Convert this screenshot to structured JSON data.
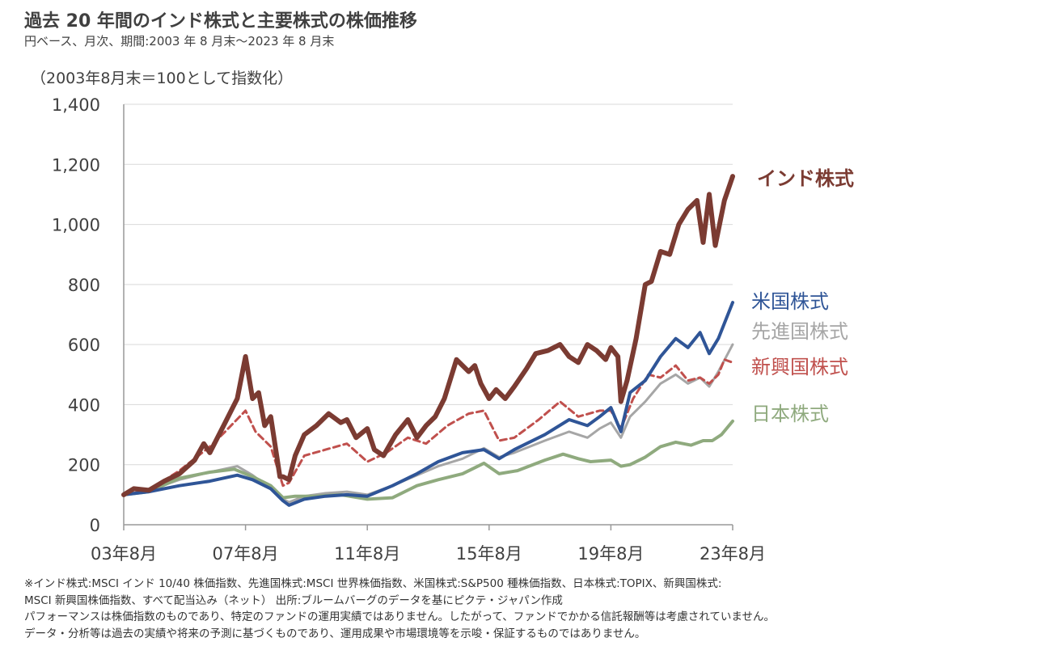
{
  "header": {
    "title": "過去 20 年間のインド株式と主要株式の株価推移",
    "subtitle": "円ベース、月次、期間:2003 年 8 月末～2023 年 8 月末",
    "unit_note": "（2003年8月末＝100として指数化）"
  },
  "chart_data": {
    "type": "line",
    "title": "過去 20 年間のインド株式と主要株式の株価推移",
    "ylabel": "（2003年8月末＝100として指数化）",
    "ylim": [
      0,
      1400
    ],
    "xlim": [
      2003.67,
      2023.67
    ],
    "grid": true,
    "y_ticks": [
      0,
      200,
      400,
      600,
      800,
      1000,
      1200,
      1400
    ],
    "y_tick_labels": [
      "0",
      "200",
      "400",
      "600",
      "800",
      "1,000",
      "1,200",
      "1,400"
    ],
    "x_ticks": [
      2003.67,
      2007.67,
      2011.67,
      2015.67,
      2019.67,
      2023.67
    ],
    "x_tick_labels": [
      "03年8月",
      "07年8月",
      "11年8月",
      "15年8月",
      "19年8月",
      "23年8月"
    ],
    "legend_placement": "right (labels at line ends)",
    "series": [
      {
        "name": "インド株式",
        "color": "#7B3B32",
        "style": "solid",
        "width": 6,
        "x": [
          2003.67,
          2004.0,
          2004.5,
          2005.0,
          2005.5,
          2006.0,
          2006.3,
          2006.5,
          2006.8,
          2007.0,
          2007.4,
          2007.67,
          2007.9,
          2008.1,
          2008.3,
          2008.5,
          2008.8,
          2008.9,
          2009.1,
          2009.3,
          2009.6,
          2010.0,
          2010.4,
          2010.8,
          2011.0,
          2011.3,
          2011.67,
          2011.9,
          2012.2,
          2012.6,
          2013.0,
          2013.3,
          2013.6,
          2013.9,
          2014.2,
          2014.6,
          2015.0,
          2015.2,
          2015.4,
          2015.67,
          2015.9,
          2016.2,
          2016.5,
          2016.9,
          2017.2,
          2017.6,
          2018.0,
          2018.3,
          2018.6,
          2018.9,
          2019.2,
          2019.5,
          2019.67,
          2019.9,
          2020.0,
          2020.2,
          2020.5,
          2020.8,
          2021.0,
          2021.3,
          2021.6,
          2021.9,
          2022.2,
          2022.5,
          2022.7,
          2022.9,
          2023.1,
          2023.4,
          2023.67
        ],
        "y": [
          100,
          120,
          115,
          145,
          170,
          215,
          270,
          240,
          300,
          340,
          420,
          560,
          420,
          440,
          330,
          360,
          160,
          160,
          150,
          230,
          300,
          330,
          370,
          340,
          350,
          290,
          320,
          250,
          230,
          300,
          350,
          290,
          330,
          360,
          420,
          550,
          510,
          530,
          470,
          420,
          450,
          420,
          460,
          520,
          570,
          580,
          600,
          560,
          540,
          600,
          580,
          550,
          590,
          560,
          410,
          480,
          620,
          800,
          810,
          910,
          900,
          1000,
          1050,
          1080,
          940,
          1100,
          930,
          1080,
          1160
        ]
      },
      {
        "name": "米国株式",
        "color": "#2F5597",
        "style": "solid",
        "width": 4,
        "x": [
          2003.67,
          2004.5,
          2005.5,
          2006.5,
          2007.4,
          2007.9,
          2008.5,
          2008.9,
          2009.1,
          2009.6,
          2010.3,
          2011.0,
          2011.67,
          2012.5,
          2013.3,
          2014.0,
          2014.8,
          2015.5,
          2016.0,
          2016.5,
          2017.5,
          2018.3,
          2018.9,
          2019.3,
          2019.67,
          2020.0,
          2020.3,
          2020.8,
          2021.3,
          2021.8,
          2022.2,
          2022.6,
          2022.9,
          2023.2,
          2023.67
        ],
        "y": [
          100,
          110,
          130,
          145,
          165,
          150,
          120,
          80,
          65,
          85,
          95,
          100,
          95,
          130,
          170,
          210,
          240,
          250,
          220,
          250,
          300,
          350,
          330,
          360,
          390,
          310,
          440,
          480,
          560,
          620,
          590,
          640,
          570,
          620,
          740
        ]
      },
      {
        "name": "先進国株式",
        "color": "#A6A6A6",
        "style": "solid",
        "width": 3,
        "x": [
          2003.67,
          2004.5,
          2005.5,
          2006.5,
          2007.4,
          2007.9,
          2008.5,
          2008.9,
          2009.1,
          2009.6,
          2010.3,
          2011.0,
          2011.67,
          2012.5,
          2013.3,
          2014.0,
          2014.8,
          2015.5,
          2016.0,
          2016.5,
          2017.5,
          2018.3,
          2018.9,
          2019.3,
          2019.67,
          2020.0,
          2020.3,
          2020.8,
          2021.3,
          2021.8,
          2022.2,
          2022.6,
          2022.9,
          2023.2,
          2023.67
        ],
        "y": [
          100,
          115,
          150,
          175,
          195,
          165,
          120,
          85,
          75,
          95,
          105,
          110,
          100,
          130,
          165,
          195,
          220,
          255,
          225,
          240,
          280,
          310,
          290,
          320,
          340,
          290,
          360,
          410,
          470,
          500,
          470,
          490,
          460,
          510,
          600
        ]
      },
      {
        "name": "新興国株式",
        "color": "#C0504D",
        "style": "dashed",
        "width": 3,
        "x": [
          2003.67,
          2004.5,
          2005.5,
          2006.5,
          2007.0,
          2007.67,
          2008.0,
          2008.5,
          2008.9,
          2009.1,
          2009.6,
          2010.3,
          2011.0,
          2011.67,
          2012.3,
          2013.0,
          2013.6,
          2014.3,
          2015.0,
          2015.5,
          2016.0,
          2016.5,
          2017.3,
          2018.0,
          2018.6,
          2019.3,
          2019.67,
          2020.0,
          2020.4,
          2020.9,
          2021.3,
          2021.8,
          2022.2,
          2022.6,
          2022.9,
          2023.2,
          2023.4,
          2023.67
        ],
        "y": [
          100,
          115,
          180,
          260,
          310,
          380,
          310,
          260,
          130,
          140,
          230,
          250,
          270,
          210,
          240,
          290,
          270,
          330,
          370,
          380,
          280,
          290,
          350,
          410,
          360,
          380,
          380,
          320,
          420,
          500,
          490,
          530,
          480,
          490,
          470,
          500,
          550,
          540
        ]
      },
      {
        "name": "日本株式",
        "color": "#8FAA7E",
        "style": "solid",
        "width": 4,
        "x": [
          2003.67,
          2004.5,
          2005.5,
          2006.5,
          2007.3,
          2007.9,
          2008.5,
          2008.9,
          2009.3,
          2010.0,
          2010.8,
          2011.67,
          2012.5,
          2013.3,
          2014.0,
          2014.8,
          2015.5,
          2016.0,
          2016.6,
          2017.5,
          2018.1,
          2018.6,
          2019.0,
          2019.67,
          2020.0,
          2020.3,
          2020.8,
          2021.3,
          2021.8,
          2022.3,
          2022.7,
          2023.0,
          2023.3,
          2023.67
        ],
        "y": [
          100,
          110,
          155,
          175,
          185,
          160,
          130,
          90,
          95,
          95,
          100,
          85,
          90,
          130,
          150,
          170,
          205,
          170,
          180,
          215,
          235,
          220,
          210,
          215,
          195,
          200,
          225,
          260,
          275,
          265,
          280,
          280,
          300,
          345
        ]
      }
    ]
  },
  "notes": [
    "※インド株式:MSCI インド 10/40 株価指数、先進国株式:MSCI 世界株価指数、米国株式:S&P500 種株価指数、日本株式:TOPIX、新興国株式:",
    "MSCI 新興国株価指数、すべて配当込み（ネット） 出所:ブルームバーグのデータを基にピクテ・ジャパン作成",
    "パフォーマンスは株価指数のものであり、特定のファンドの運用実績ではありません。したがって、ファンドでかかる信託報酬等は考慮されていません。",
    "データ・分析等は過去の実績や将来の予測に基づくものであり、運用成果や市場環境等を示唆・保証するものではありません。"
  ]
}
